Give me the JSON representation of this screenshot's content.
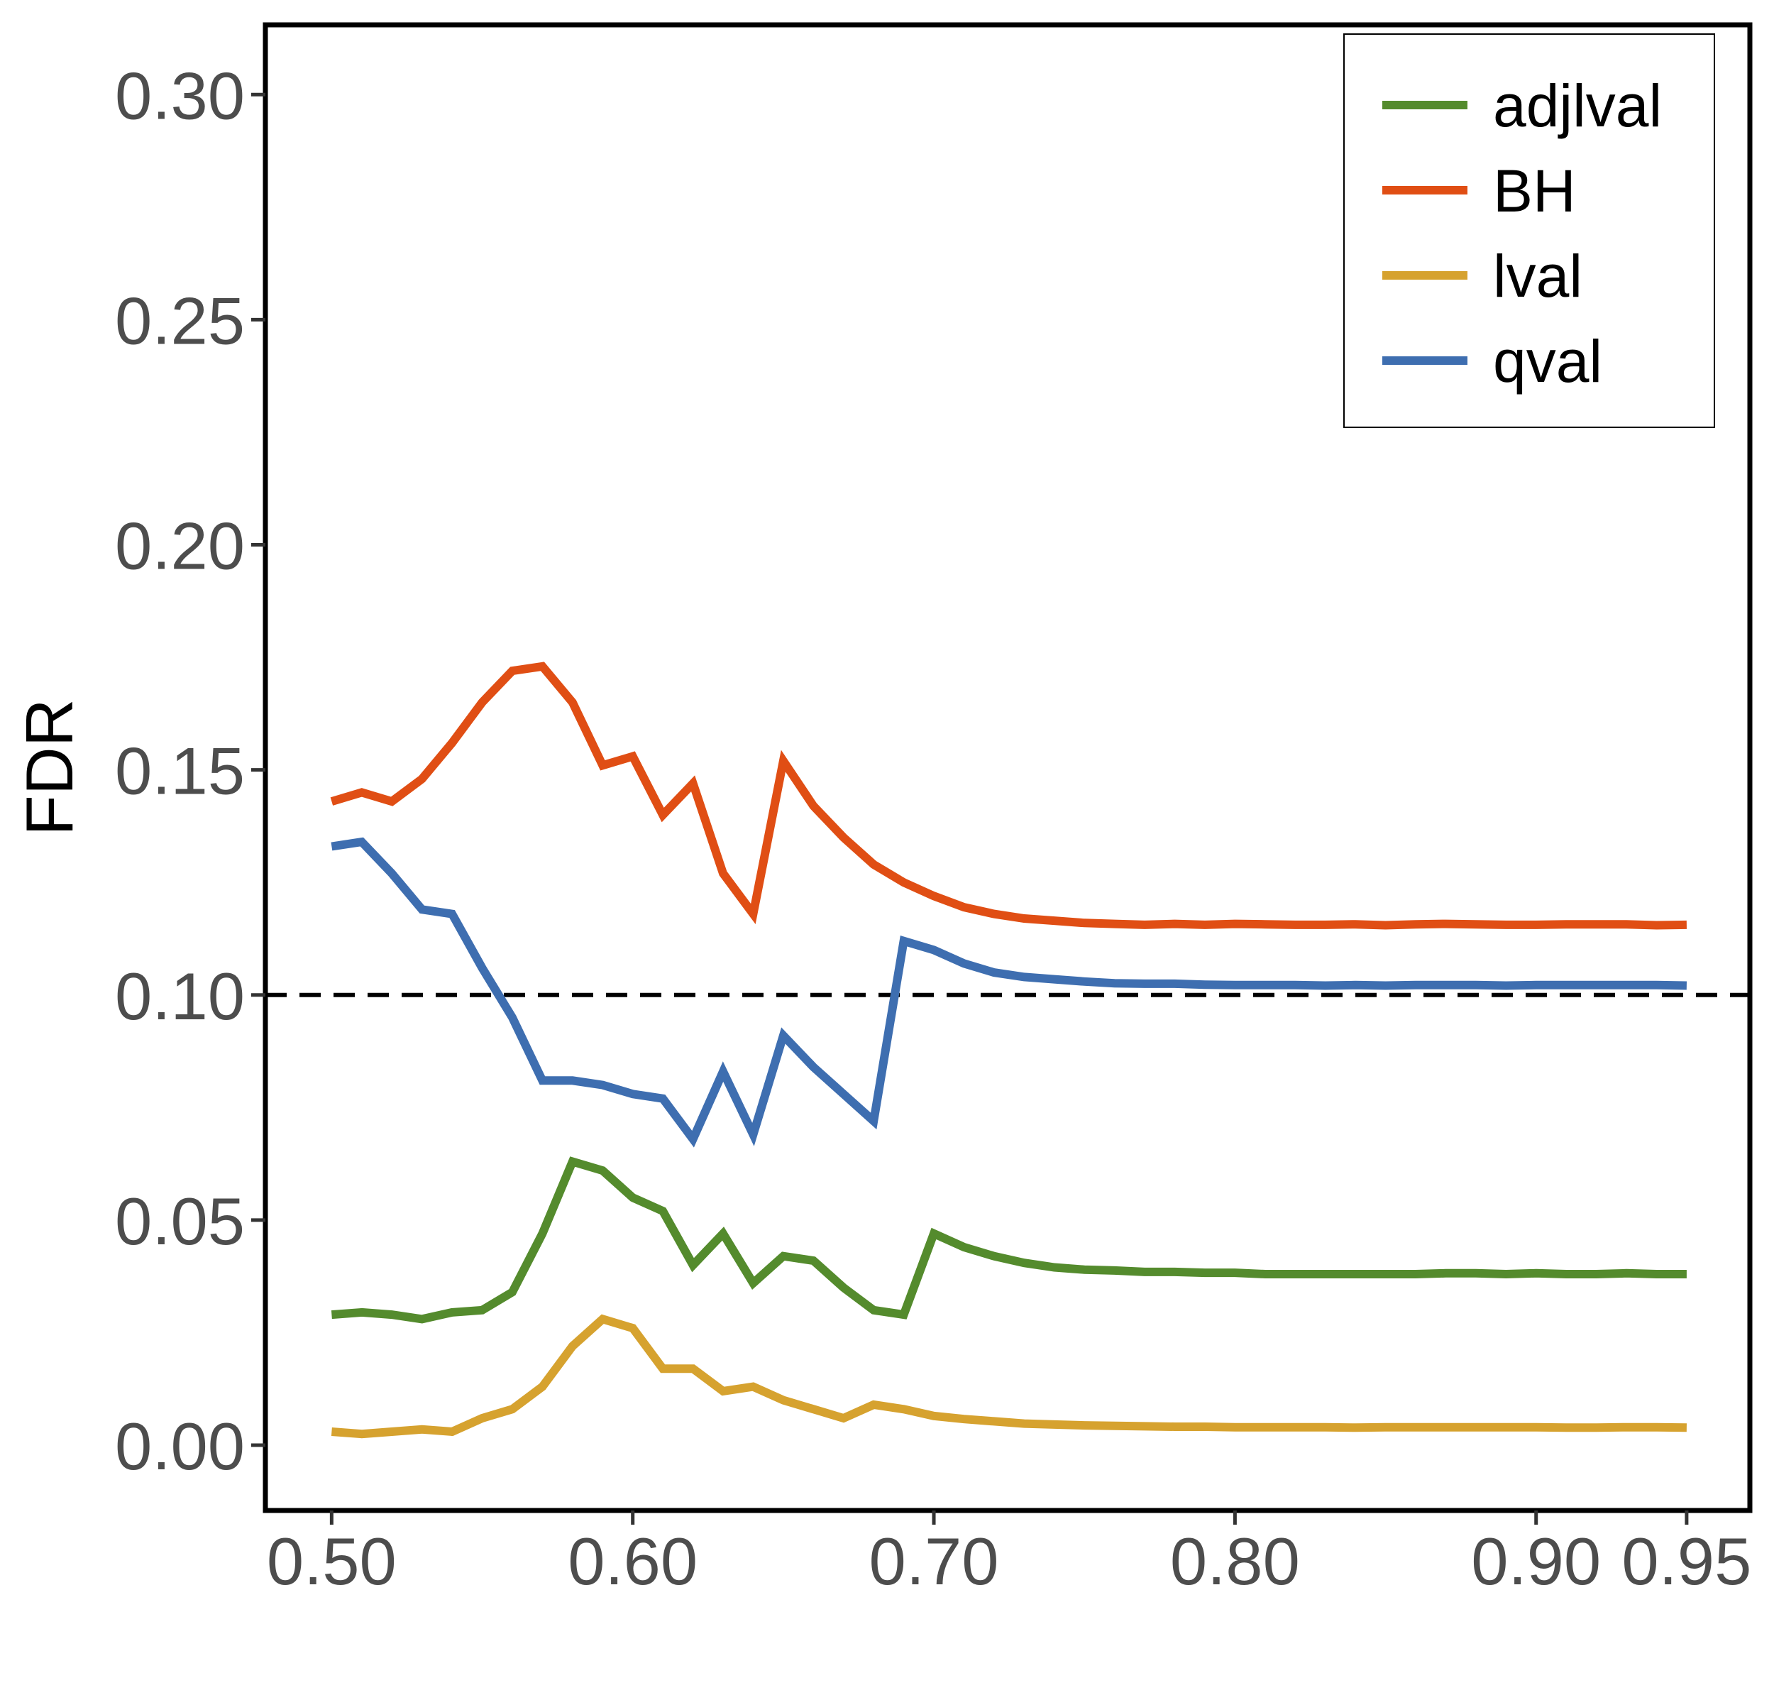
{
  "chart_data": {
    "type": "line",
    "title": "",
    "xlabel": "",
    "ylabel": "FDR",
    "xlim": [
      0.478,
      0.971
    ],
    "ylim": [
      -0.0145,
      0.3155
    ],
    "x_ticks": [
      0.5,
      0.6,
      0.7,
      0.8,
      0.9,
      0.95
    ],
    "x_tick_labels": [
      "0.50",
      "0.60",
      "0.70",
      "0.80",
      "0.90",
      "0.95"
    ],
    "y_ticks": [
      0.0,
      0.05,
      0.1,
      0.15,
      0.2,
      0.25,
      0.3
    ],
    "y_tick_labels": [
      "0.00",
      "0.05",
      "0.10",
      "0.15",
      "0.20",
      "0.25",
      "0.30"
    ],
    "grid": false,
    "legend_position": "top-right",
    "reference_line": {
      "y": 0.1,
      "style": "dashed",
      "color": "#000000"
    },
    "x": [
      0.5,
      0.51,
      0.52,
      0.53,
      0.54,
      0.55,
      0.56,
      0.57,
      0.58,
      0.59,
      0.6,
      0.61,
      0.62,
      0.63,
      0.64,
      0.65,
      0.66,
      0.67,
      0.68,
      0.69,
      0.7,
      0.71,
      0.72,
      0.73,
      0.74,
      0.75,
      0.76,
      0.77,
      0.78,
      0.79,
      0.8,
      0.81,
      0.82,
      0.83,
      0.84,
      0.85,
      0.86,
      0.87,
      0.88,
      0.89,
      0.9,
      0.91,
      0.92,
      0.93,
      0.94,
      0.95
    ],
    "series": [
      {
        "name": "adjlval",
        "color": "#548b2d",
        "values": [
          0.029,
          0.0295,
          0.029,
          0.028,
          0.0295,
          0.03,
          0.034,
          0.047,
          0.063,
          0.061,
          0.055,
          0.052,
          0.04,
          0.047,
          0.036,
          0.042,
          0.041,
          0.035,
          0.03,
          0.029,
          0.047,
          0.044,
          0.042,
          0.0405,
          0.0395,
          0.039,
          0.0388,
          0.0385,
          0.0385,
          0.0383,
          0.0383,
          0.038,
          0.038,
          0.038,
          0.038,
          0.038,
          0.038,
          0.0382,
          0.0382,
          0.038,
          0.0382,
          0.038,
          0.038,
          0.0382,
          0.038,
          0.038
        ]
      },
      {
        "name": "BH",
        "color": "#e04e14",
        "values": [
          0.143,
          0.145,
          0.143,
          0.148,
          0.156,
          0.165,
          0.172,
          0.173,
          0.165,
          0.151,
          0.153,
          0.14,
          0.147,
          0.127,
          0.118,
          0.152,
          0.142,
          0.135,
          0.129,
          0.125,
          0.122,
          0.1195,
          0.118,
          0.117,
          0.1165,
          0.116,
          0.1158,
          0.1156,
          0.1158,
          0.1156,
          0.1158,
          0.1157,
          0.1156,
          0.1156,
          0.1157,
          0.1155,
          0.1157,
          0.1158,
          0.1157,
          0.1156,
          0.1156,
          0.1157,
          0.1157,
          0.1157,
          0.1155,
          0.1156
        ]
      },
      {
        "name": "lval",
        "color": "#d6a22f",
        "values": [
          0.003,
          0.0025,
          0.003,
          0.0035,
          0.003,
          0.006,
          0.008,
          0.013,
          0.022,
          0.028,
          0.026,
          0.017,
          0.017,
          0.012,
          0.013,
          0.01,
          0.008,
          0.006,
          0.009,
          0.008,
          0.0065,
          0.0058,
          0.0053,
          0.0048,
          0.0046,
          0.0044,
          0.0043,
          0.0042,
          0.0041,
          0.0041,
          0.004,
          0.004,
          0.004,
          0.004,
          0.0039,
          0.004,
          0.004,
          0.004,
          0.004,
          0.004,
          0.004,
          0.0039,
          0.0039,
          0.004,
          0.004,
          0.0039
        ]
      },
      {
        "name": "qval",
        "color": "#3e6eb0",
        "values": [
          0.133,
          0.134,
          0.127,
          0.119,
          0.118,
          0.106,
          0.095,
          0.081,
          0.081,
          0.08,
          0.078,
          0.077,
          0.068,
          0.083,
          0.069,
          0.091,
          0.084,
          0.078,
          0.072,
          0.112,
          0.11,
          0.107,
          0.105,
          0.104,
          0.1035,
          0.103,
          0.1026,
          0.1025,
          0.1025,
          0.1023,
          0.1022,
          0.1022,
          0.1022,
          0.1021,
          0.1022,
          0.1021,
          0.1022,
          0.1022,
          0.1022,
          0.1021,
          0.1022,
          0.1022,
          0.1022,
          0.1022,
          0.1022,
          0.1021
        ]
      }
    ]
  }
}
